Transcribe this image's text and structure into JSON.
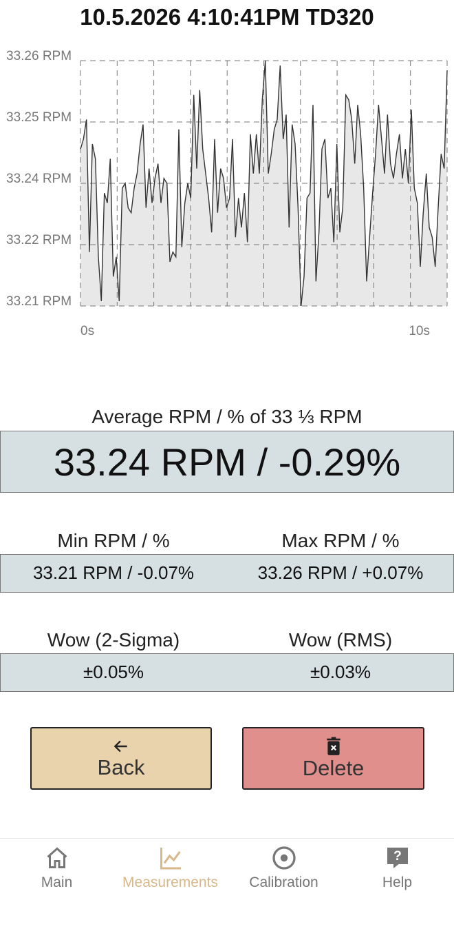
{
  "header": {
    "title": "10.5.2026 4:10:41PM TD320"
  },
  "chart_data": {
    "type": "line",
    "color": "#333333",
    "fill": "#e8e8e8",
    "grid": true,
    "values": [
      33.242,
      33.244,
      33.248,
      33.221,
      33.243,
      33.24,
      33.22,
      33.211,
      33.233,
      33.231,
      33.24,
      33.216,
      33.22,
      33.211,
      33.234,
      33.235,
      33.23,
      33.229,
      33.234,
      33.237,
      33.243,
      33.247,
      33.23,
      33.238,
      33.231,
      33.236,
      33.239,
      33.231,
      33.236,
      33.235,
      33.219,
      33.221,
      33.22,
      33.246,
      33.222,
      33.231,
      33.235,
      33.232,
      33.253,
      33.238,
      33.254,
      33.242,
      33.237,
      33.232,
      33.225,
      33.244,
      33.229,
      33.238,
      33.236,
      33.23,
      33.232,
      33.244,
      33.224,
      33.232,
      33.226,
      33.233,
      33.223,
      33.245,
      33.237,
      33.245,
      33.237,
      33.252,
      33.26,
      33.237,
      33.241,
      33.246,
      33.248,
      33.259,
      33.244,
      33.249,
      33.226,
      33.247,
      33.243,
      33.23,
      33.21,
      33.216,
      33.232,
      33.233,
      33.251,
      33.215,
      33.225,
      33.242,
      33.244,
      33.232,
      33.234,
      33.223,
      33.243,
      33.225,
      33.23,
      33.253,
      33.252,
      33.248,
      33.239,
      33.251,
      33.245,
      33.234,
      33.215,
      33.224,
      33.233,
      33.241,
      33.251,
      33.244,
      33.237,
      33.249,
      33.239,
      33.236,
      33.241,
      33.245,
      33.236,
      33.242,
      33.235,
      33.25,
      33.234,
      33.231,
      33.218,
      33.229,
      33.237,
      33.226,
      33.224,
      33.218,
      33.23,
      33.241,
      33.238,
      33.258
    ],
    "ylim": [
      33.21,
      33.26
    ],
    "yticks": [
      {
        "value": 33.21,
        "label": "33.21 RPM"
      },
      {
        "value": 33.2225,
        "label": "33.22 RPM"
      },
      {
        "value": 33.235,
        "label": "33.24 RPM"
      },
      {
        "value": 33.2475,
        "label": "33.25 RPM"
      },
      {
        "value": 33.26,
        "label": "33.26 RPM"
      }
    ],
    "xlim": [
      0,
      10
    ],
    "xticks": [
      {
        "value": 0,
        "label": "0s"
      },
      {
        "value": 10,
        "label": "10s"
      }
    ]
  },
  "average": {
    "label": "Average RPM / % of 33 ⅓ RPM",
    "value": "33.24 RPM / -0.29%"
  },
  "min": {
    "label": "Min RPM / %",
    "value": "33.21 RPM / -0.07%"
  },
  "max": {
    "label": "Max RPM / %",
    "value": "33.26 RPM / +0.07%"
  },
  "wow_2sigma": {
    "label": "Wow (2-Sigma)",
    "value": "±0.05%"
  },
  "wow_rms": {
    "label": "Wow (RMS)",
    "value": "±0.03%"
  },
  "buttons": {
    "back": "Back",
    "delete": "Delete"
  },
  "nav": [
    {
      "label": "Main",
      "active": false
    },
    {
      "label": "Measurements",
      "active": true
    },
    {
      "label": "Calibration",
      "active": false
    },
    {
      "label": "Help",
      "active": false
    }
  ]
}
